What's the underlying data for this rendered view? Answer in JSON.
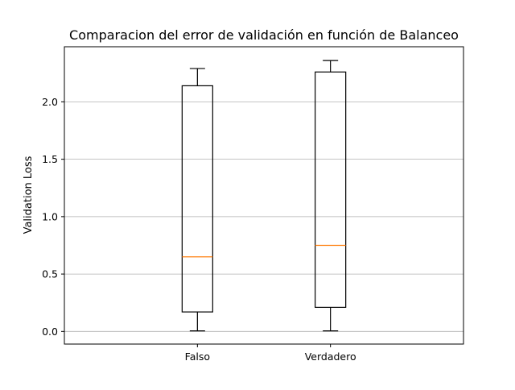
{
  "chart_data": {
    "type": "box",
    "title": "Comparacion del error de validación en función de Balanceo",
    "xlabel": "",
    "ylabel": "Validation Loss",
    "categories": [
      "Falso",
      "Verdadero"
    ],
    "boxes": [
      {
        "category": "Falso",
        "whisker_low": 0.005,
        "q1": 0.17,
        "median": 0.65,
        "q3": 2.14,
        "whisker_high": 2.29
      },
      {
        "category": "Verdadero",
        "whisker_low": 0.005,
        "q1": 0.21,
        "median": 0.75,
        "q3": 2.26,
        "whisker_high": 2.36
      }
    ],
    "ylim": [
      -0.11,
      2.48
    ],
    "yticks": [
      0.0,
      0.5,
      1.0,
      1.5,
      2.0
    ],
    "ytick_labels": [
      "0.0",
      "0.5",
      "1.0",
      "1.5",
      "2.0"
    ],
    "grid": "horizontal",
    "colors": {
      "box": "#000000",
      "median": "#ff7f0e",
      "grid": "#b0b0b0"
    }
  }
}
